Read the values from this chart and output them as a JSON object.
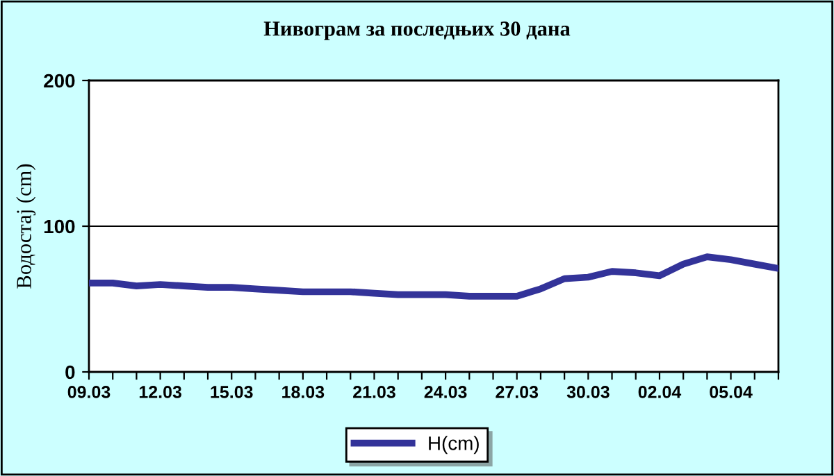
{
  "chart_data": {
    "type": "line",
    "title": "Нивограм за последњих 30 дана",
    "ylabel": "Водостај (cm)",
    "categories": [
      "09.03",
      null,
      null,
      "12.03",
      null,
      null,
      "15.03",
      null,
      null,
      "18.03",
      null,
      null,
      "21.03",
      null,
      null,
      "24.03",
      null,
      null,
      "27.03",
      null,
      null,
      "30.03",
      null,
      null,
      "02.04",
      null,
      null,
      "05.04",
      null,
      null
    ],
    "series": [
      {
        "name": "H(cm)",
        "color": "#333399",
        "values": [
          61,
          61,
          59,
          60,
          59,
          58,
          58,
          57,
          56,
          55,
          55,
          55,
          54,
          53,
          53,
          53,
          52,
          52,
          52,
          57,
          64,
          65,
          69,
          68,
          66,
          74,
          79,
          77,
          74,
          71
        ]
      }
    ],
    "ylim": [
      0,
      200
    ],
    "yticks": [
      0,
      100,
      200
    ],
    "grid": "y",
    "legend": "bottom",
    "marker": "none",
    "line_style": "solid"
  }
}
